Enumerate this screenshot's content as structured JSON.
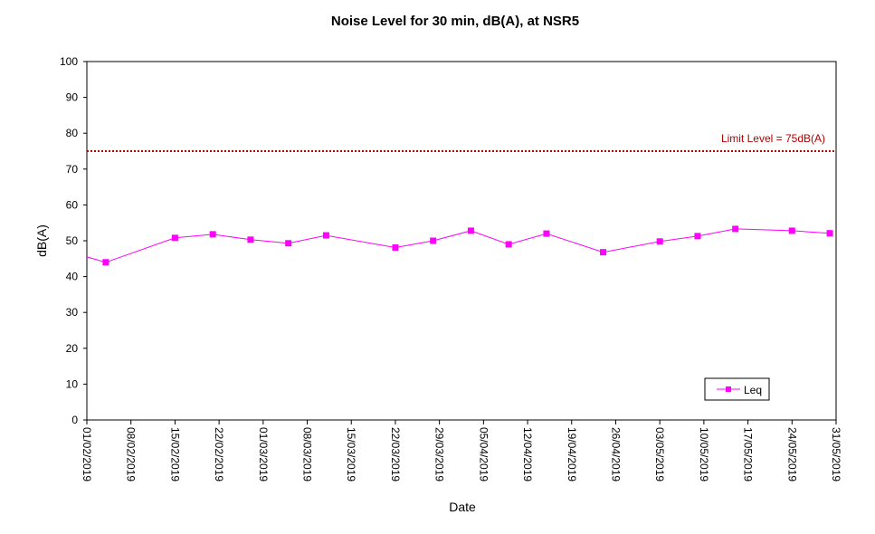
{
  "chart_data": {
    "type": "line",
    "title": "Noise Level for 30 min, dB(A), at NSR5",
    "xlabel": "Date",
    "ylabel": "dB(A)",
    "ylim": [
      0,
      100
    ],
    "yticks": [
      0,
      10,
      20,
      30,
      40,
      50,
      60,
      70,
      80,
      90,
      100
    ],
    "xlim": [
      "2019-02-01",
      "2019-05-31"
    ],
    "xtick_labels": [
      "01/02/2019",
      "08/02/2019",
      "15/02/2019",
      "22/02/2019",
      "01/03/2019",
      "08/03/2019",
      "15/03/2019",
      "22/03/2019",
      "29/03/2019",
      "05/04/2019",
      "12/04/2019",
      "19/04/2019",
      "26/04/2019",
      "03/05/2019",
      "10/05/2019",
      "17/05/2019",
      "24/05/2019",
      "31/05/2019"
    ],
    "grid": false,
    "legend": {
      "position": "bottom-right",
      "entries": [
        "Leq"
      ]
    },
    "series": [
      {
        "name": "Leq",
        "color": "#ff00ff",
        "marker": "square",
        "points": [
          {
            "x": "2019-01-31",
            "y": 46.0
          },
          {
            "x": "2019-02-04",
            "y": 44.0
          },
          {
            "x": "2019-02-15",
            "y": 50.8
          },
          {
            "x": "2019-02-21",
            "y": 51.8
          },
          {
            "x": "2019-02-27",
            "y": 50.3
          },
          {
            "x": "2019-03-05",
            "y": 49.3
          },
          {
            "x": "2019-03-11",
            "y": 51.5
          },
          {
            "x": "2019-03-22",
            "y": 48.1
          },
          {
            "x": "2019-03-28",
            "y": 50.0
          },
          {
            "x": "2019-04-03",
            "y": 52.8
          },
          {
            "x": "2019-04-09",
            "y": 49.0
          },
          {
            "x": "2019-04-15",
            "y": 52.0
          },
          {
            "x": "2019-04-24",
            "y": 46.8
          },
          {
            "x": "2019-05-03",
            "y": 49.8
          },
          {
            "x": "2019-05-09",
            "y": 51.3
          },
          {
            "x": "2019-05-15",
            "y": 53.3
          },
          {
            "x": "2019-05-24",
            "y": 52.8
          },
          {
            "x": "2019-05-30",
            "y": 52.1
          }
        ]
      }
    ],
    "reference_lines": [
      {
        "label": "Limit Level  = 75dB(A)",
        "y": 75,
        "color": "#b00000",
        "style": "dotted"
      }
    ]
  }
}
